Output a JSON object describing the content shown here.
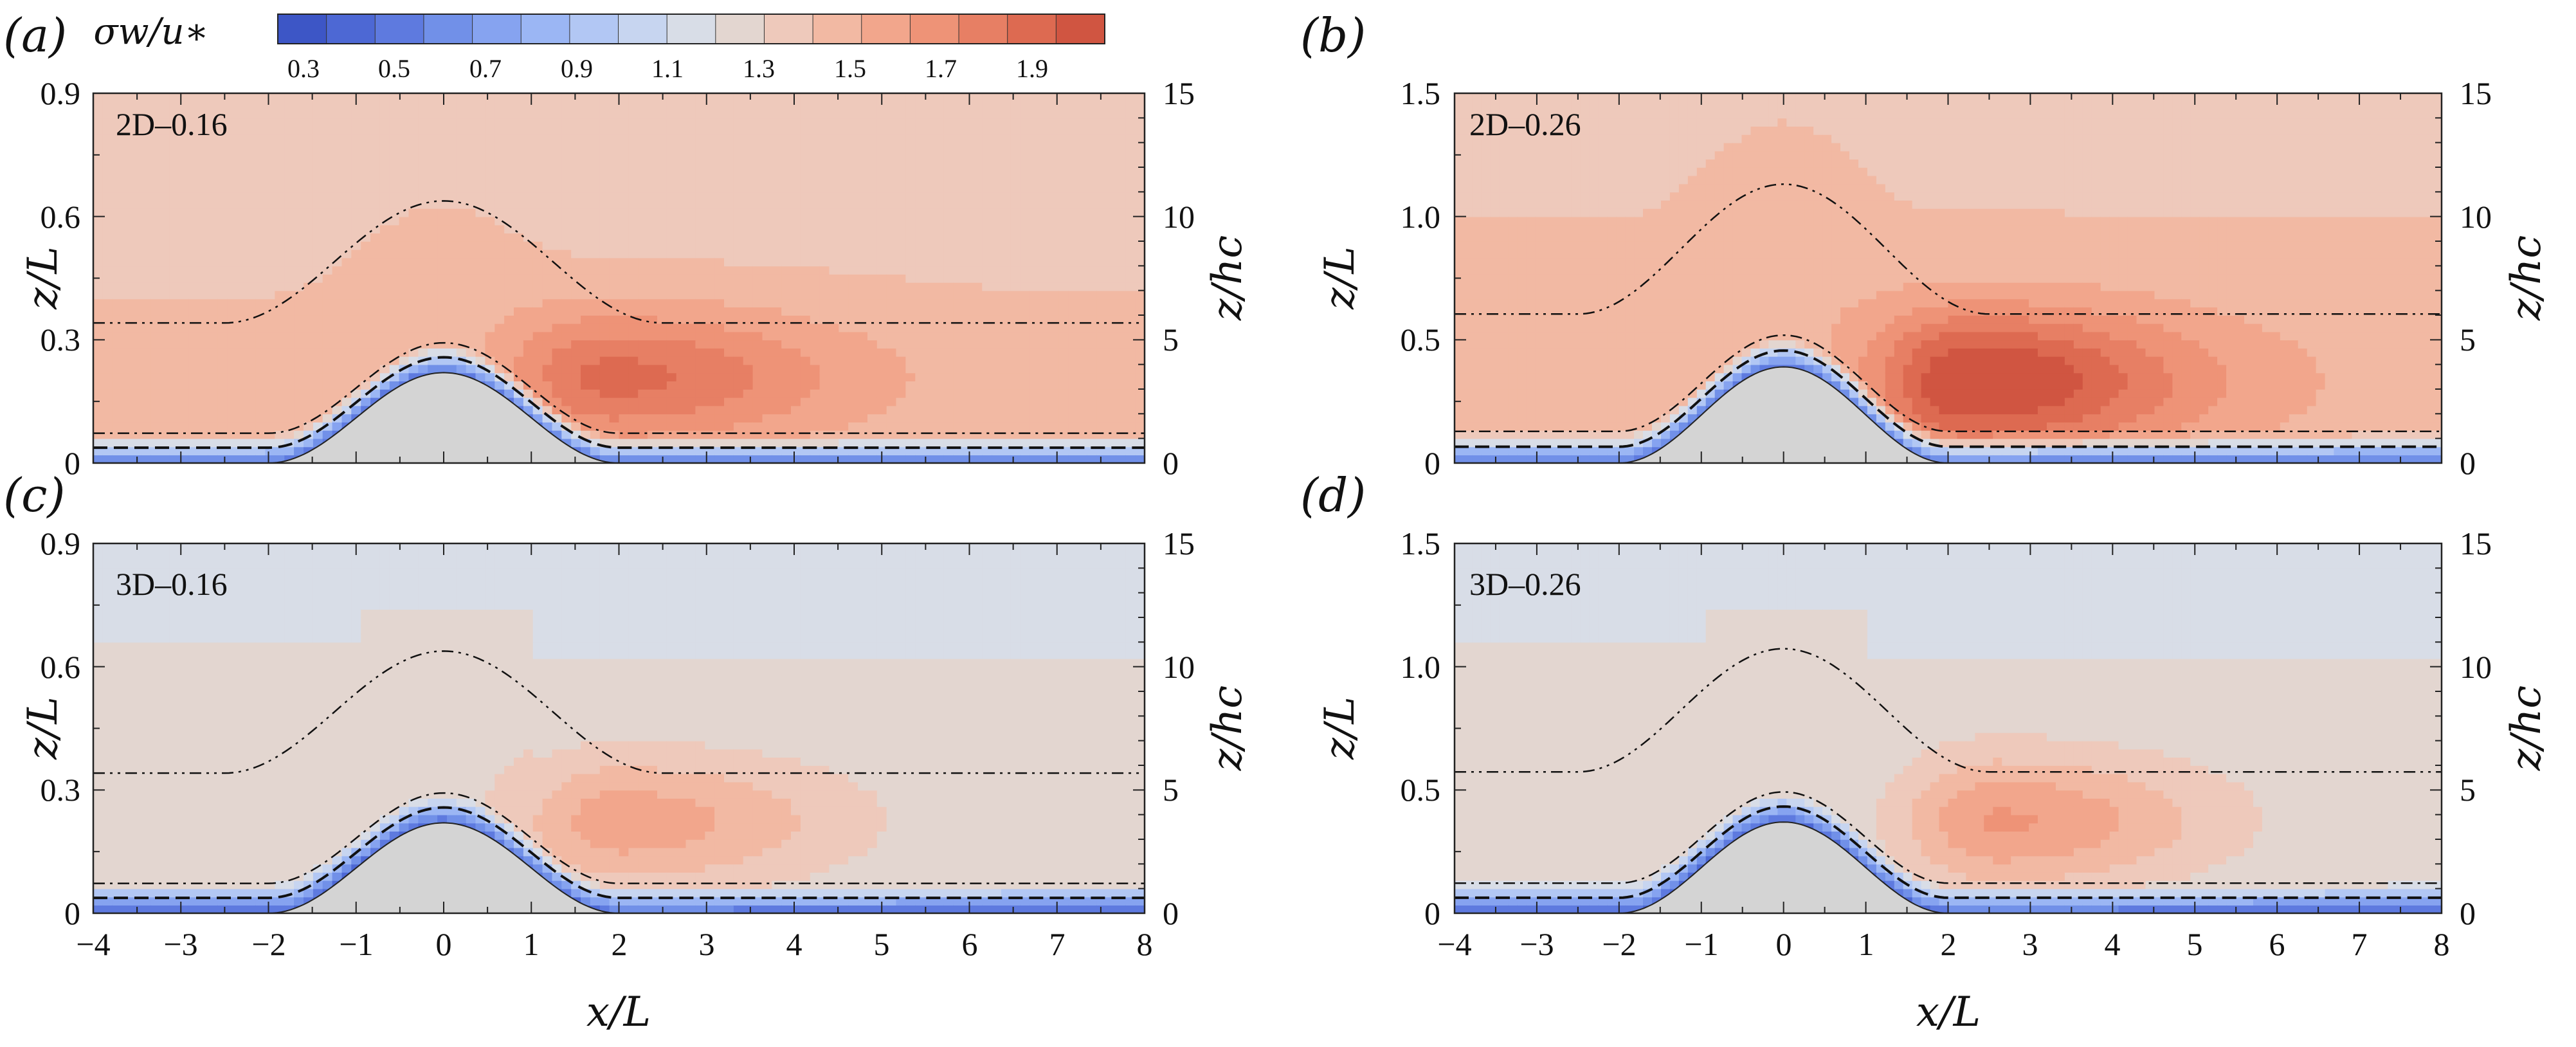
{
  "colorbar": {
    "title": "σw/u∗",
    "tick_labels": [
      "0.3",
      "0.5",
      "0.7",
      "0.9",
      "1.1",
      "1.3",
      "1.5",
      "1.7",
      "1.9"
    ],
    "levels": [
      0.3,
      0.4,
      0.5,
      0.6,
      0.7,
      0.8,
      0.9,
      1.0,
      1.1,
      1.2,
      1.3,
      1.4,
      1.5,
      1.6,
      1.7,
      1.8,
      1.9,
      2.0
    ],
    "colors": [
      "#3d56c6",
      "#4d68d4",
      "#5e7adf",
      "#7190e8",
      "#86a3f0",
      "#9bb6f4",
      "#b2c7f4",
      "#c7d5f0",
      "#d8dde7",
      "#e3d6d0",
      "#eec9bb",
      "#f2b9a3",
      "#f2a68c",
      "#ee9377",
      "#e77f64",
      "#dd6a51",
      "#d05541"
    ]
  },
  "chart_data": [
    {
      "panel": "(a)",
      "case_label": "2D–0.16",
      "type": "heatmap",
      "xlabel": "x/L",
      "ylabel": "z/L",
      "y2label": "z/hc",
      "xlim": [
        -4,
        8
      ],
      "ylim": [
        0,
        0.9
      ],
      "y2lim": [
        0,
        15
      ],
      "yticks": [
        "0",
        "0.3",
        "0.6",
        "0.9"
      ],
      "y2ticks": [
        "0",
        "5",
        "10",
        "15"
      ],
      "x_tick_labels": [],
      "hill_height": 0.22,
      "background_level": 1.35,
      "hotspot": {
        "x": 1.9,
        "z": 0.21,
        "max": 1.75
      }
    },
    {
      "panel": "(b)",
      "case_label": "2D–0.26",
      "type": "heatmap",
      "xlabel": "x/L",
      "ylabel": "z/L",
      "y2label": "z/hc",
      "xlim": [
        -4,
        8
      ],
      "ylim": [
        0,
        1.5
      ],
      "y2lim": [
        0,
        15
      ],
      "yticks": [
        "0",
        "0.5",
        "1.0",
        "1.5"
      ],
      "y2ticks": [
        "0",
        "5",
        "10",
        "15"
      ],
      "x_tick_labels": [],
      "hill_height": 0.39,
      "background_level": 1.38,
      "hotspot": {
        "x": 2.3,
        "z": 0.33,
        "max": 1.95
      }
    },
    {
      "panel": "(c)",
      "case_label": "3D–0.16",
      "type": "heatmap",
      "xlabel": "x/L",
      "ylabel": "z/L",
      "y2label": "z/hc",
      "xlim": [
        -4,
        8
      ],
      "ylim": [
        0,
        0.9
      ],
      "y2lim": [
        0,
        15
      ],
      "yticks": [
        "0",
        "0.3",
        "0.6",
        "0.9"
      ],
      "y2ticks": [
        "0",
        "5",
        "10",
        "15"
      ],
      "x_tick_labels": [
        "−4",
        "−3",
        "−2",
        "−1",
        "0",
        "1",
        "2",
        "3",
        "4",
        "5",
        "6",
        "7",
        "8"
      ],
      "hill_height": 0.22,
      "background_level": 1.2,
      "hotspot": {
        "x": 2.0,
        "z": 0.22,
        "max": 1.55
      }
    },
    {
      "panel": "(d)",
      "case_label": "3D–0.26",
      "type": "heatmap",
      "xlabel": "x/L",
      "ylabel": "z/L",
      "y2label": "z/hc",
      "xlim": [
        -4,
        8
      ],
      "ylim": [
        0,
        1.5
      ],
      "y2lim": [
        0,
        15
      ],
      "yticks": [
        "0",
        "0.5",
        "1.0",
        "1.5"
      ],
      "y2ticks": [
        "0",
        "5",
        "10",
        "15"
      ],
      "x_tick_labels": [
        "−4",
        "−3",
        "−2",
        "−1",
        "0",
        "1",
        "2",
        "3",
        "4",
        "5",
        "6",
        "7",
        "8"
      ],
      "hill_height": 0.37,
      "background_level": 1.2,
      "hotspot": {
        "x": 2.6,
        "z": 0.37,
        "max": 1.6
      }
    }
  ]
}
